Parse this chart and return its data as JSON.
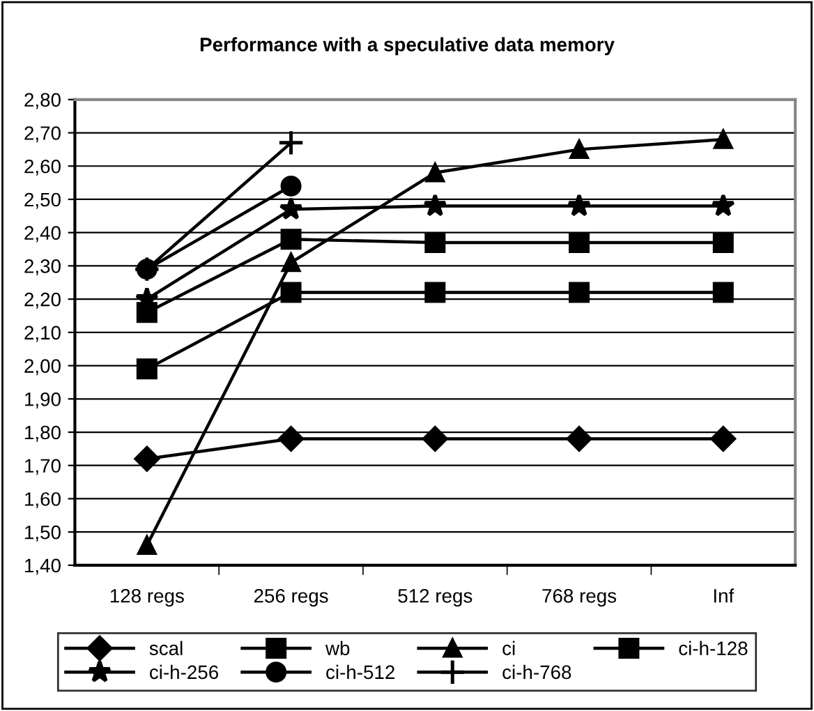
{
  "chart_data": {
    "type": "line",
    "title": "Performance with a speculative data memory",
    "categories": [
      "128 regs",
      "256 regs",
      "512 regs",
      "768 regs",
      "Inf"
    ],
    "series": [
      {
        "name": "scal",
        "color": "#000000",
        "marker": "diamond",
        "values": [
          1.72,
          1.78,
          1.78,
          1.78,
          1.78
        ]
      },
      {
        "name": "wb",
        "color": "#000000",
        "marker": "square",
        "values": [
          1.99,
          2.22,
          2.22,
          2.22,
          2.22
        ]
      },
      {
        "name": "ci",
        "color": "#000000",
        "marker": "triangle",
        "values": [
          1.46,
          2.31,
          2.58,
          2.65,
          2.68
        ]
      },
      {
        "name": "ci-h-128",
        "color": "#000000",
        "marker": "square",
        "values": [
          2.16,
          2.38,
          2.37,
          2.37,
          2.37
        ]
      },
      {
        "name": "ci-h-256",
        "color": "#000000",
        "marker": "star",
        "values": [
          2.2,
          2.47,
          2.48,
          2.48,
          2.48
        ]
      },
      {
        "name": "ci-h-512",
        "color": "#000000",
        "marker": "circle",
        "values": [
          2.29,
          2.54,
          null,
          null,
          null
        ]
      },
      {
        "name": "ci-h-768",
        "color": "#000000",
        "marker": "cross",
        "values": [
          2.29,
          2.67,
          null,
          null,
          null
        ]
      }
    ],
    "ylim": [
      1.4,
      2.8
    ],
    "yticks": [
      {
        "value": 1.4,
        "label": "1,40"
      },
      {
        "value": 1.5,
        "label": "1,50"
      },
      {
        "value": 1.6,
        "label": "1,60"
      },
      {
        "value": 1.7,
        "label": "1,70"
      },
      {
        "value": 1.8,
        "label": "1,80"
      },
      {
        "value": 1.9,
        "label": "1,90"
      },
      {
        "value": 2.0,
        "label": "2,00"
      },
      {
        "value": 2.1,
        "label": "2,10"
      },
      {
        "value": 2.2,
        "label": "2,20"
      },
      {
        "value": 2.3,
        "label": "2,30"
      },
      {
        "value": 2.4,
        "label": "2,40"
      },
      {
        "value": 2.5,
        "label": "2,50"
      },
      {
        "value": 2.6,
        "label": "2,60"
      },
      {
        "value": 2.7,
        "label": "2,70"
      },
      {
        "value": 2.8,
        "label": "2,80"
      }
    ],
    "grid": "y",
    "legend": "bottom",
    "line_style": "solid"
  }
}
